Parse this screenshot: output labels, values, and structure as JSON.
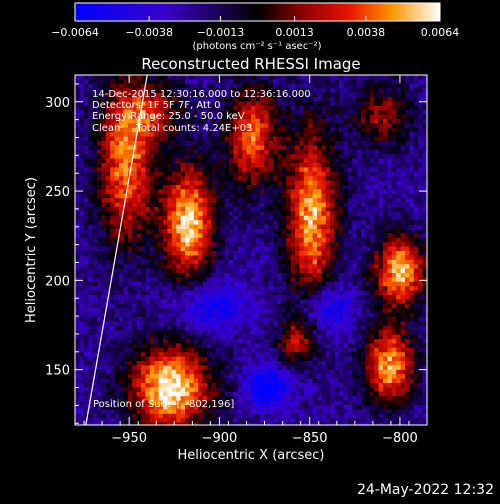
{
  "chart_data": {
    "type": "heatmap",
    "title": "Reconstructed RHESSI Image",
    "xlabel": "Heliocentric X (arcsec)",
    "ylabel": "Heliocentric Y (arcsec)",
    "xlim": [
      -980,
      -785
    ],
    "ylim": [
      119,
      315
    ],
    "xticks": [
      -950,
      -900,
      -850,
      -800
    ],
    "xtick_labels": [
      "−950",
      "−900",
      "−850",
      "−800"
    ],
    "yticks": [
      150,
      200,
      250,
      300
    ],
    "ytick_labels": [
      "150",
      "200",
      "250",
      "300"
    ],
    "colorbar": {
      "orientation": "horizontal",
      "placement": "top",
      "range": [
        -0.0064,
        0.0064
      ],
      "ticks": [
        -0.0064,
        -0.0038,
        -0.0013,
        0.0013,
        0.0038,
        0.0064
      ],
      "tick_labels": [
        "−0.0064",
        "−0.0038",
        "−0.0013",
        "0.0013",
        "0.0038",
        "0.0064"
      ],
      "units": "(photons cm⁻² s⁻¹ asec⁻²)"
    },
    "annotations": [
      "14-Dec-2015 12:30:16.000 to 12:36:16.000",
      "Detectors: 1F 5F 7F, Att 0",
      "Energy Range: 25.0 - 50.0 keV",
      "Clean     Total counts: 4.24E+03"
    ],
    "position_label": "Position of Sun:  [−802,196]",
    "limb_line": {
      "x": [
        -974,
        -940
      ],
      "y": [
        119,
        315
      ]
    },
    "sources": [
      {
        "x": -917,
        "y": 232,
        "sx": 10,
        "sy": 22,
        "amp": 1.05
      },
      {
        "x": -952,
        "y": 263,
        "sx": 11,
        "sy": 30,
        "amp": 0.85
      },
      {
        "x": -882,
        "y": 280,
        "sx": 10,
        "sy": 20,
        "amp": 0.8
      },
      {
        "x": -849,
        "y": 236,
        "sx": 10,
        "sy": 34,
        "amp": 0.95
      },
      {
        "x": -800,
        "y": 205,
        "sx": 10,
        "sy": 14,
        "amp": 1.0
      },
      {
        "x": -806,
        "y": 152,
        "sx": 10,
        "sy": 15,
        "amp": 0.95
      },
      {
        "x": -927,
        "y": 140,
        "sx": 16,
        "sy": 17,
        "amp": 1.1
      },
      {
        "x": -938,
        "y": 295,
        "sx": 14,
        "sy": 12,
        "amp": 0.5
      },
      {
        "x": -858,
        "y": 165,
        "sx": 7,
        "sy": 9,
        "amp": 0.55
      },
      {
        "x": -810,
        "y": 292,
        "sx": 12,
        "sy": 12,
        "amp": 0.5
      },
      {
        "x": -873,
        "y": 140,
        "sx": 9,
        "sy": 8,
        "amp": -0.6
      },
      {
        "x": -905,
        "y": 185,
        "sx": 14,
        "sy": 10,
        "amp": -0.45
      },
      {
        "x": -840,
        "y": 185,
        "sx": 10,
        "sy": 10,
        "amp": -0.5
      }
    ]
  },
  "footer": {
    "date": "24-May-2022 12:32"
  }
}
